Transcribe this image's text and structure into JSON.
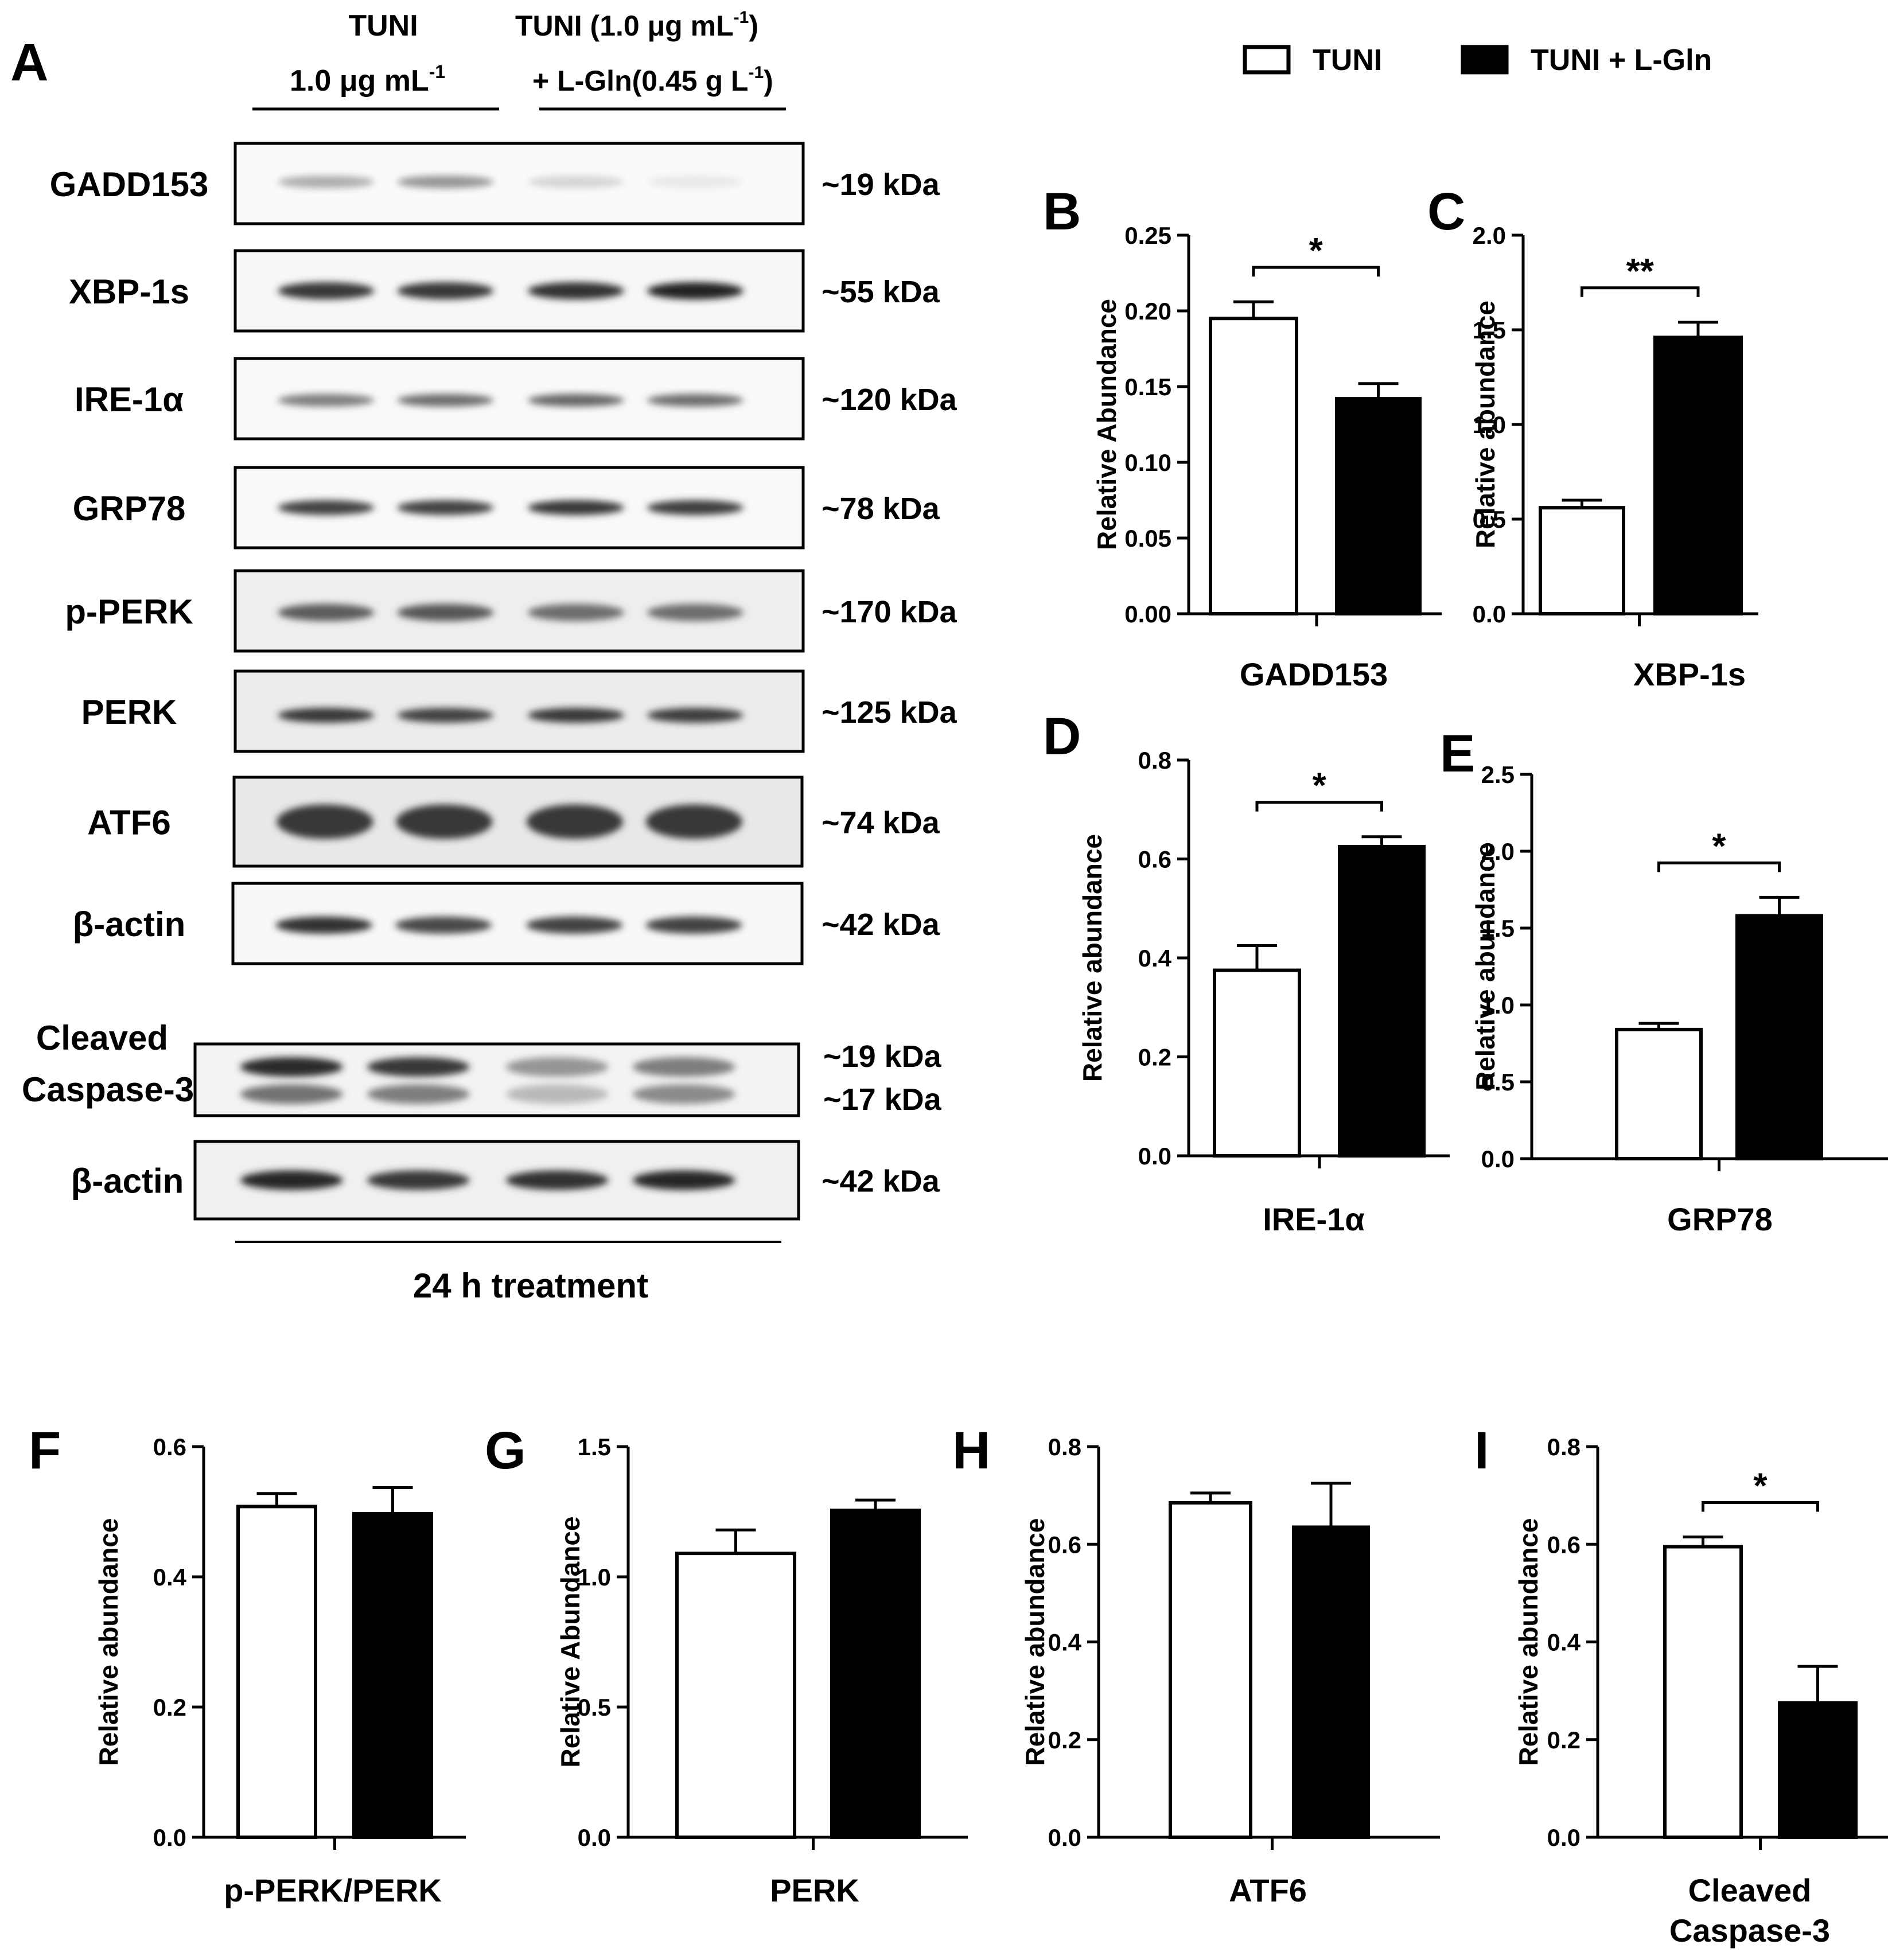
{
  "panel_a": {
    "letter": "A",
    "group1_line1": "TUNI",
    "group1_line2": "1.0 μg mL",
    "group1_sup": "-1",
    "group2_line1": "TUNI (1.0 μg mL",
    "group2_line1_sup": "-1",
    "group2_line1_end": ")",
    "group2_line2": "+ L-Gln(0.45 g L",
    "group2_line2_sup": "-1",
    "group2_line2_end": ")",
    "footer": "24 h treatment",
    "blots": [
      {
        "label": "GADD153",
        "kda": "~19 kDa"
      },
      {
        "label": "XBP-1s",
        "kda": "~55 kDa"
      },
      {
        "label": "IRE-1α",
        "kda": "~120 kDa"
      },
      {
        "label": "GRP78",
        "kda": "~78 kDa"
      },
      {
        "label": "p-PERK",
        "kda": "~170 kDa"
      },
      {
        "label": "PERK",
        "kda": "~125 kDa"
      },
      {
        "label": "ATF6",
        "kda": "~74 kDa"
      },
      {
        "label": "β-actin",
        "kda": "~42 kDa"
      },
      {
        "label_line1": "Cleaved",
        "label_line2": "Caspase-3",
        "kda": "~19 kDa",
        "kda2": "~17 kDa"
      },
      {
        "label": "β-actin",
        "kda": "~42 kDa"
      }
    ]
  },
  "legend": {
    "items": [
      {
        "label": "TUNI",
        "color": "#ffffff"
      },
      {
        "label": "TUNI + L-Gln",
        "color": "#000000"
      }
    ]
  },
  "chart_data": [
    {
      "panel": "B",
      "type": "bar",
      "ylabel": "Relative Abundance",
      "xlabel": "GADD153",
      "ylim": [
        0,
        0.25
      ],
      "yticks": [
        "0.00",
        "0.05",
        "0.10",
        "0.15",
        "0.20",
        "0.25"
      ],
      "series": [
        {
          "name": "TUNI",
          "values": [
            0.195
          ],
          "error": [
            0.011
          ]
        },
        {
          "name": "TUNI + L-Gln",
          "values": [
            0.142
          ],
          "error": [
            0.01
          ]
        }
      ],
      "significance": "*"
    },
    {
      "panel": "C",
      "type": "bar",
      "ylabel": "Relative abundance",
      "xlabel": "XBP-1s",
      "ylim": [
        0,
        2.0
      ],
      "yticks": [
        "0.0",
        "0.5",
        "1.0",
        "1.5",
        "2.0"
      ],
      "series": [
        {
          "name": "TUNI",
          "values": [
            0.56
          ],
          "error": [
            0.04
          ]
        },
        {
          "name": "TUNI + L-Gln",
          "values": [
            1.46
          ],
          "error": [
            0.08
          ]
        }
      ],
      "significance": "**"
    },
    {
      "panel": "D",
      "type": "bar",
      "ylabel": "Relative abundance",
      "xlabel": "IRE-1α",
      "ylim": [
        0,
        0.8
      ],
      "yticks": [
        "0.0",
        "0.2",
        "0.4",
        "0.6",
        "0.8"
      ],
      "series": [
        {
          "name": "TUNI",
          "values": [
            0.375
          ],
          "error": [
            0.05
          ]
        },
        {
          "name": "TUNI + L-Gln",
          "values": [
            0.625
          ],
          "error": [
            0.02
          ]
        }
      ],
      "significance": "*"
    },
    {
      "panel": "E",
      "type": "bar",
      "ylabel": "Relative abundance",
      "xlabel": "GRP78",
      "ylim": [
        0,
        2.5
      ],
      "yticks": [
        "0.0",
        "0.5",
        "1.0",
        "1.5",
        "2.0",
        "2.5"
      ],
      "series": [
        {
          "name": "TUNI",
          "values": [
            0.84
          ],
          "error": [
            0.04
          ]
        },
        {
          "name": "TUNI + L-Gln",
          "values": [
            1.58
          ],
          "error": [
            0.12
          ]
        }
      ],
      "significance": "*"
    },
    {
      "panel": "F",
      "type": "bar",
      "ylabel": "Relative abundance",
      "xlabel": "p-PERK/PERK",
      "ylim": [
        0,
        0.6
      ],
      "yticks": [
        "0.0",
        "0.2",
        "0.4",
        "0.6"
      ],
      "series": [
        {
          "name": "TUNI",
          "values": [
            0.508
          ],
          "error": [
            0.02
          ]
        },
        {
          "name": "TUNI + L-Gln",
          "values": [
            0.497
          ],
          "error": [
            0.04
          ]
        }
      ],
      "significance": ""
    },
    {
      "panel": "G",
      "type": "bar",
      "ylabel": "Relative Abundance",
      "xlabel": "PERK",
      "ylim": [
        0,
        1.5
      ],
      "yticks": [
        "0.0",
        "0.5",
        "1.0",
        "1.5"
      ],
      "series": [
        {
          "name": "TUNI",
          "values": [
            1.09
          ],
          "error": [
            0.09
          ]
        },
        {
          "name": "TUNI + L-Gln",
          "values": [
            1.255
          ],
          "error": [
            0.04
          ]
        }
      ],
      "significance": ""
    },
    {
      "panel": "H",
      "type": "bar",
      "ylabel": "Relative abundance",
      "xlabel": "ATF6",
      "ylim": [
        0,
        0.8
      ],
      "yticks": [
        "0.0",
        "0.2",
        "0.4",
        "0.6",
        "0.8"
      ],
      "series": [
        {
          "name": "TUNI",
          "values": [
            0.685
          ],
          "error": [
            0.02
          ]
        },
        {
          "name": "TUNI + L-Gln",
          "values": [
            0.635
          ],
          "error": [
            0.09
          ]
        }
      ],
      "significance": ""
    },
    {
      "panel": "I",
      "type": "bar",
      "ylabel": "Relative abundance",
      "xlabel": "Cleaved",
      "xlabel2": "Caspase-3",
      "ylim": [
        0,
        0.8
      ],
      "yticks": [
        "0.0",
        "0.2",
        "0.4",
        "0.6",
        "0.8"
      ],
      "series": [
        {
          "name": "TUNI",
          "values": [
            0.595
          ],
          "error": [
            0.02
          ]
        },
        {
          "name": "TUNI + L-Gln",
          "values": [
            0.275
          ],
          "error": [
            0.075
          ]
        }
      ],
      "significance": "*"
    }
  ]
}
